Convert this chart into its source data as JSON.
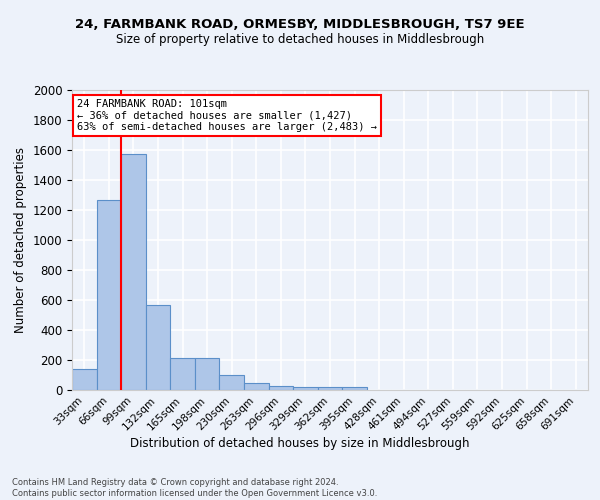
{
  "title1": "24, FARMBANK ROAD, ORMESBY, MIDDLESBROUGH, TS7 9EE",
  "title2": "Size of property relative to detached houses in Middlesbrough",
  "xlabel": "Distribution of detached houses by size in Middlesbrough",
  "ylabel": "Number of detached properties",
  "categories": [
    "33sqm",
    "66sqm",
    "99sqm",
    "132sqm",
    "165sqm",
    "198sqm",
    "230sqm",
    "263sqm",
    "296sqm",
    "329sqm",
    "362sqm",
    "395sqm",
    "428sqm",
    "461sqm",
    "494sqm",
    "527sqm",
    "559sqm",
    "592sqm",
    "625sqm",
    "658sqm",
    "691sqm"
  ],
  "values": [
    137,
    1270,
    1575,
    570,
    215,
    215,
    98,
    50,
    25,
    20,
    20,
    20,
    0,
    0,
    0,
    0,
    0,
    0,
    0,
    0,
    0
  ],
  "bar_color": "#aec6e8",
  "bar_edge_color": "#5b8fc9",
  "vline_color": "red",
  "annotation_title": "24 FARMBANK ROAD: 101sqm",
  "annotation_line1": "← 36% of detached houses are smaller (1,427)",
  "annotation_line2": "63% of semi-detached houses are larger (2,483) →",
  "annotation_box_color": "white",
  "annotation_box_edge_color": "red",
  "footer1": "Contains HM Land Registry data © Crown copyright and database right 2024.",
  "footer2": "Contains public sector information licensed under the Open Government Licence v3.0.",
  "ylim": [
    0,
    2000
  ],
  "yticks": [
    0,
    200,
    400,
    600,
    800,
    1000,
    1200,
    1400,
    1600,
    1800,
    2000
  ],
  "bg_color": "#edf2fa",
  "grid_color": "white",
  "vline_x_index": 2
}
